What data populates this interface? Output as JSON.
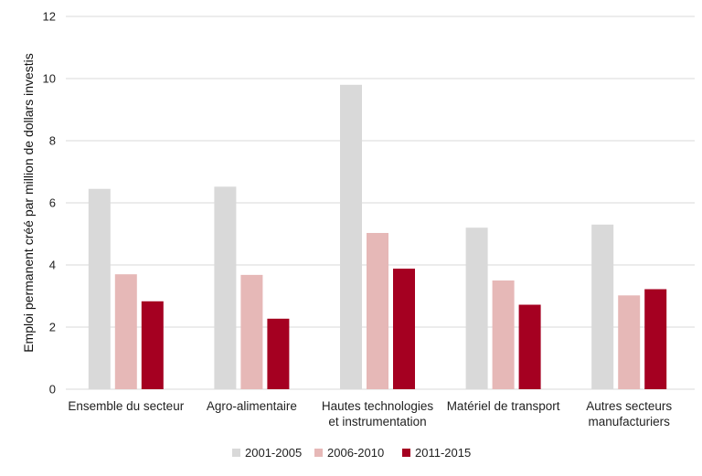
{
  "chart_data": {
    "type": "bar",
    "categories": [
      [
        "Ensemble du secteur"
      ],
      [
        "Agro-alimentaire"
      ],
      [
        "Hautes technologies",
        "et instrumentation"
      ],
      [
        "Matériel de transport"
      ],
      [
        "Autres secteurs",
        "manufacturiers"
      ]
    ],
    "series": [
      {
        "name": "2001-2005",
        "color": "#d9d9d9",
        "values": [
          6.45,
          6.52,
          9.8,
          5.2,
          5.3
        ]
      },
      {
        "name": "2006-2010",
        "color": "#e6b8b7",
        "values": [
          3.7,
          3.68,
          5.03,
          3.5,
          3.02
        ]
      },
      {
        "name": "2011-2015",
        "color": "#a50021",
        "values": [
          2.83,
          2.27,
          3.88,
          2.72,
          3.22
        ]
      }
    ],
    "ylabel": "Emploi permanent créé par million de dollars investis",
    "xlabel": "",
    "title": "",
    "ylim": [
      0,
      12
    ],
    "yticks": [
      0,
      2,
      4,
      6,
      8,
      10,
      12
    ],
    "grid": true,
    "legend_position": "bottom"
  }
}
